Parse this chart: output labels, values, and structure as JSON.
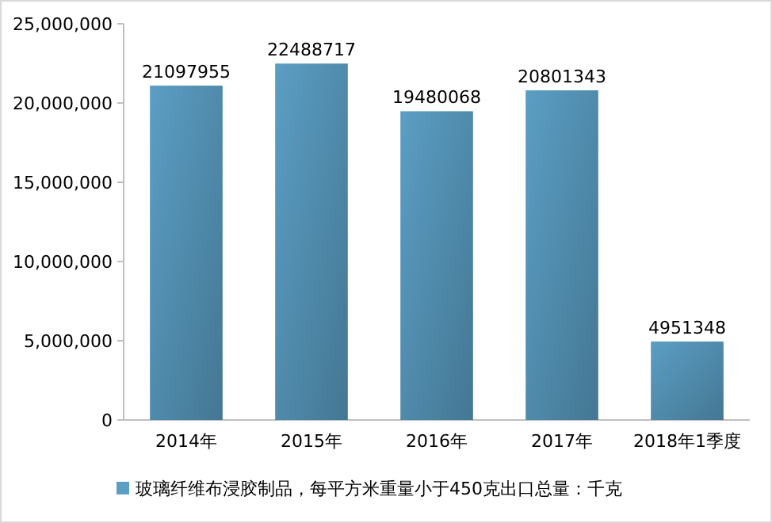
{
  "chart_data": {
    "type": "bar",
    "categories": [
      "2014年",
      "2015年",
      "2016年",
      "2017年",
      "2018年1季度"
    ],
    "series": [
      {
        "name": "玻璃纤维布浸胶制品，每平方米重量小于450克出口总量：千克",
        "color": "#5b9ec4",
        "values": [
          21097955,
          22488717,
          19480068,
          20801343,
          4951348
        ]
      }
    ],
    "ylim": [
      0,
      25000000
    ],
    "yticks": [
      {
        "value": 0,
        "label": "0"
      },
      {
        "value": 5000000,
        "label": "5,000,000"
      },
      {
        "value": 10000000,
        "label": "10,000,000"
      },
      {
        "value": 15000000,
        "label": "15,000,000"
      },
      {
        "value": 20000000,
        "label": "20,000,000"
      },
      {
        "value": 25000000,
        "label": "25,000,000"
      }
    ],
    "data_labels": true,
    "grid": false,
    "legend": "bottom"
  }
}
